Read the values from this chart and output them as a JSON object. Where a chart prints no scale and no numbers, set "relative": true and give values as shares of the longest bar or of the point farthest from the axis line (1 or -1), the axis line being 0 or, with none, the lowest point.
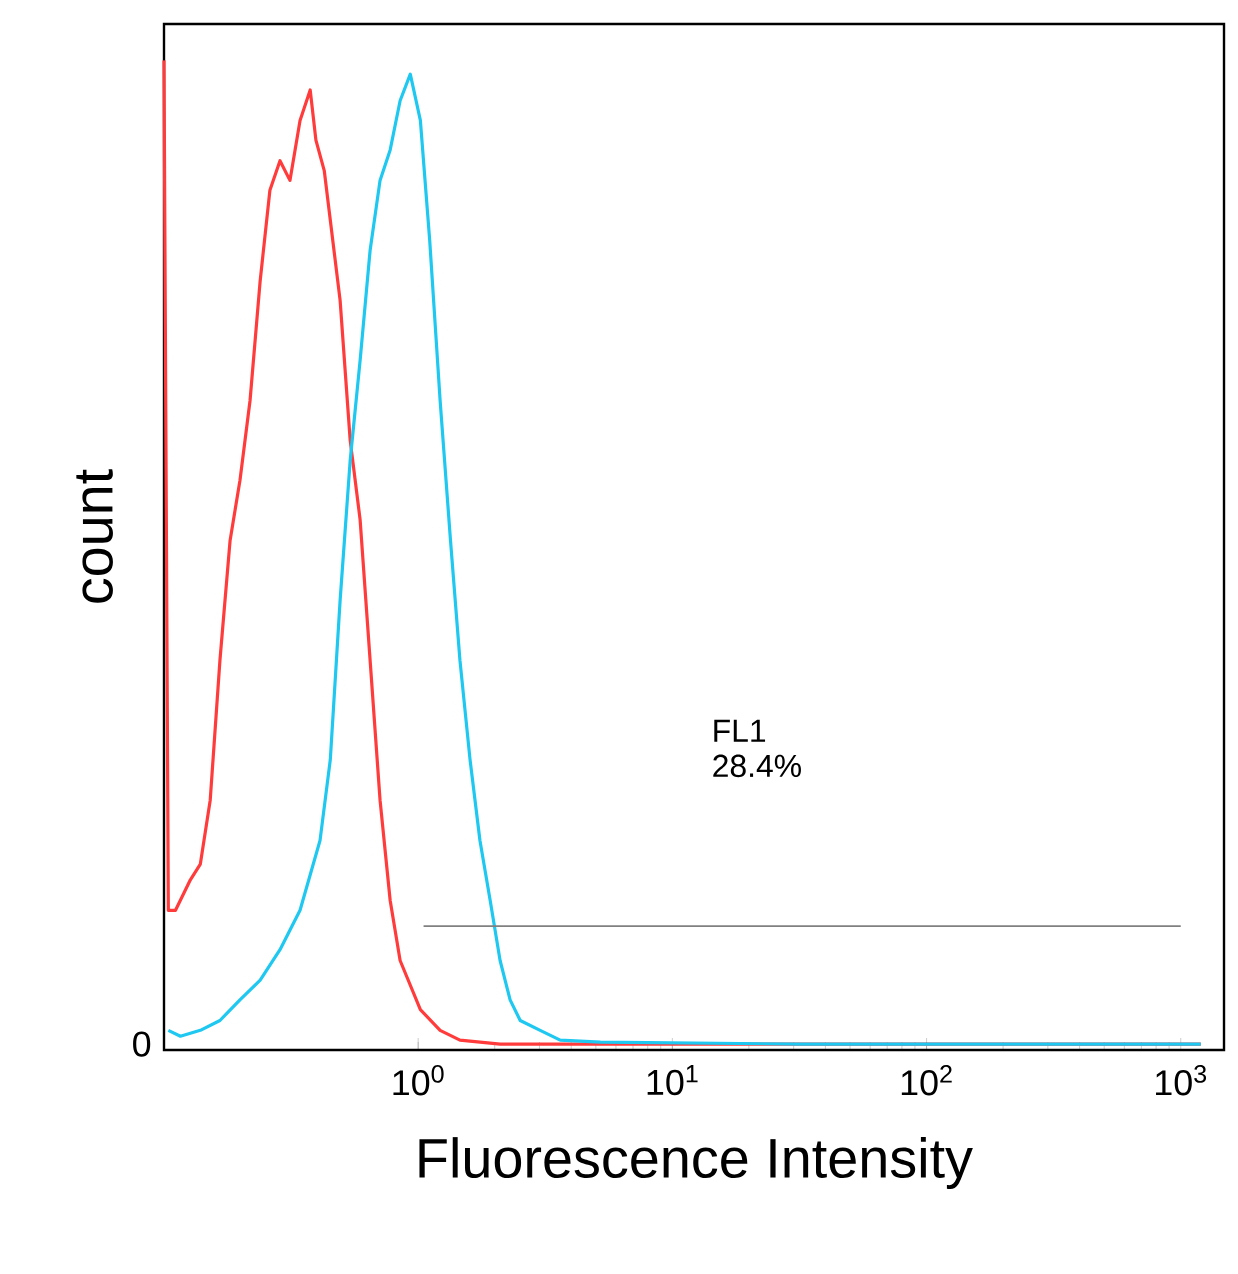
{
  "chart_data": {
    "type": "line",
    "xlabel": "Fluorescence Intensity",
    "ylabel": "count",
    "log": "x",
    "relative": true,
    "xlim": [
      0.1,
      1480
    ],
    "xticks": [
      {
        "value": 1,
        "label": "10$^{0}$"
      },
      {
        "value": 10,
        "label": "10$^{1}$"
      },
      {
        "value": 100,
        "label": "10$^{2}$"
      },
      {
        "value": 1000,
        "label": "10$^{3}$"
      }
    ],
    "series": [
      {
        "color": "#ff3b3b",
        "x": [
          0.1,
          0.104,
          0.111,
          0.127,
          0.139,
          0.152,
          0.166,
          0.182,
          0.199,
          0.218,
          0.239,
          0.261,
          0.286,
          0.313,
          0.343,
          0.376,
          0.396,
          0.427,
          0.493,
          0.54,
          0.591,
          0.647,
          0.708,
          0.776,
          0.849,
          1.02,
          1.22,
          1.46,
          2.1,
          1199
        ],
        "values": [
          1.0,
          0.136,
          0.136,
          0.167,
          0.183,
          0.248,
          0.39,
          0.512,
          0.573,
          0.654,
          0.776,
          0.868,
          0.898,
          0.878,
          0.939,
          0.97,
          0.919,
          0.888,
          0.756,
          0.614,
          0.533,
          0.39,
          0.248,
          0.146,
          0.085,
          0.035,
          0.014,
          0.004,
          0,
          0
        ]
      },
      {
        "color": "#1ec8f0",
        "x": [
          0.104,
          0.116,
          0.139,
          0.166,
          0.199,
          0.239,
          0.286,
          0.343,
          0.411,
          0.451,
          0.493,
          0.54,
          0.591,
          0.647,
          0.708,
          0.776,
          0.849,
          0.931,
          1.02,
          1.11,
          1.22,
          1.34,
          1.46,
          1.6,
          1.75,
          1.92,
          2.1,
          2.3,
          2.52,
          3.02,
          3.62,
          5.21,
          31.9,
          1199
        ],
        "values": [
          0.014,
          0.008,
          0.014,
          0.024,
          0.045,
          0.065,
          0.096,
          0.136,
          0.207,
          0.289,
          0.451,
          0.593,
          0.695,
          0.807,
          0.878,
          0.909,
          0.959,
          0.986,
          0.939,
          0.817,
          0.654,
          0.512,
          0.39,
          0.289,
          0.207,
          0.146,
          0.085,
          0.045,
          0.024,
          0.014,
          0.004,
          0.002,
          0,
          0
        ]
      },
      {
        "color": "#808080",
        "x": [
          1.05,
          1000
        ],
        "values": [
          0.12,
          0.12
        ]
      }
    ],
    "annotations": [
      "0",
      "FL1",
      "28.4%"
    ]
  }
}
